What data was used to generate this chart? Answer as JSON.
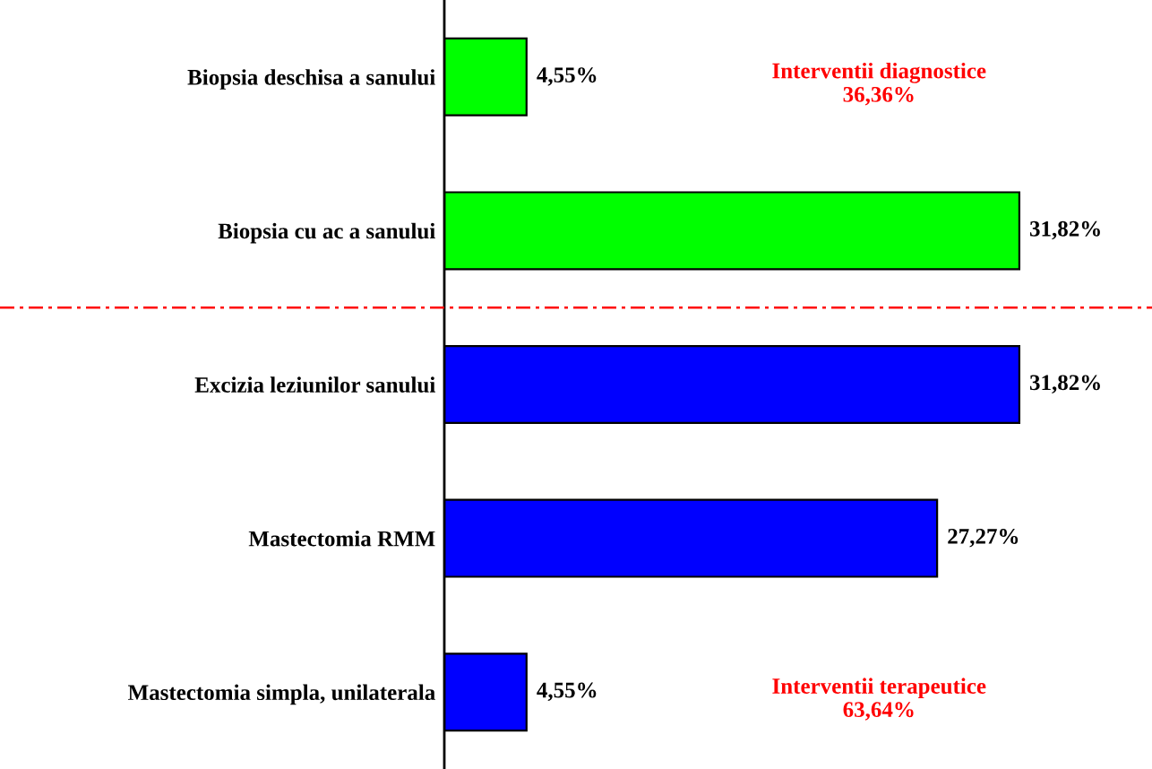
{
  "chart_data": {
    "type": "bar",
    "orientation": "horizontal",
    "categories": [
      "Biopsia deschisa a sanului",
      "Biopsia cu ac a sanului",
      "Excizia leziunilor sanului",
      "Mastectomia RMM",
      "Mastectomia simpla, unilaterala"
    ],
    "values": [
      4.55,
      31.82,
      31.82,
      27.27,
      4.55
    ],
    "colors": [
      "#00ff00",
      "#00ff00",
      "#0000ff",
      "#0000ff",
      "#0000ff"
    ],
    "value_labels": [
      "4,55%",
      "31,82%",
      "31,82%",
      "27,27%",
      "4,55%"
    ],
    "tick_labels": "y",
    "grid": false,
    "legend": false,
    "annotations": [
      "Interventii diagnostice\n36,36%",
      "Interventii terapeutice\n63,64%"
    ]
  }
}
